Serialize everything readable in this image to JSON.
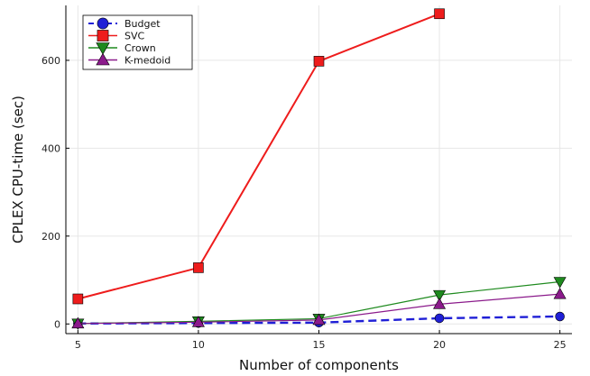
{
  "chart_data": {
    "type": "line",
    "xlabel": "Number of components",
    "ylabel": "CPLEX CPU-time (sec)",
    "x_ticks": [
      5,
      10,
      15,
      20,
      25
    ],
    "y_ticks": [
      0,
      200,
      400,
      600
    ],
    "xlim": [
      4.5,
      25.5
    ],
    "ylim": [
      -22,
      725
    ],
    "grid": true,
    "legend_position": "top-left",
    "series": [
      {
        "name": "Budget",
        "x": [
          5,
          10,
          15,
          20,
          25
        ],
        "values": [
          1,
          2,
          3,
          13,
          17
        ],
        "color": "#1f1fd6",
        "marker": "circle",
        "line_style": "dashed"
      },
      {
        "name": "SVC",
        "x": [
          5,
          10,
          15,
          20
        ],
        "values": [
          57,
          128,
          598,
          706
        ],
        "color": "#ee1c1c",
        "marker": "square",
        "line_style": "solid"
      },
      {
        "name": "Crown",
        "x": [
          5,
          10,
          15,
          20,
          25
        ],
        "values": [
          1,
          6,
          12,
          66,
          96
        ],
        "color": "#1e8a1e",
        "marker": "triangle-down",
        "line_style": "solid"
      },
      {
        "name": "K-medoid",
        "x": [
          5,
          10,
          15,
          20,
          25
        ],
        "values": [
          1,
          4,
          9,
          45,
          68
        ],
        "color": "#8b1a8b",
        "marker": "triangle-up",
        "line_style": "solid"
      }
    ]
  }
}
